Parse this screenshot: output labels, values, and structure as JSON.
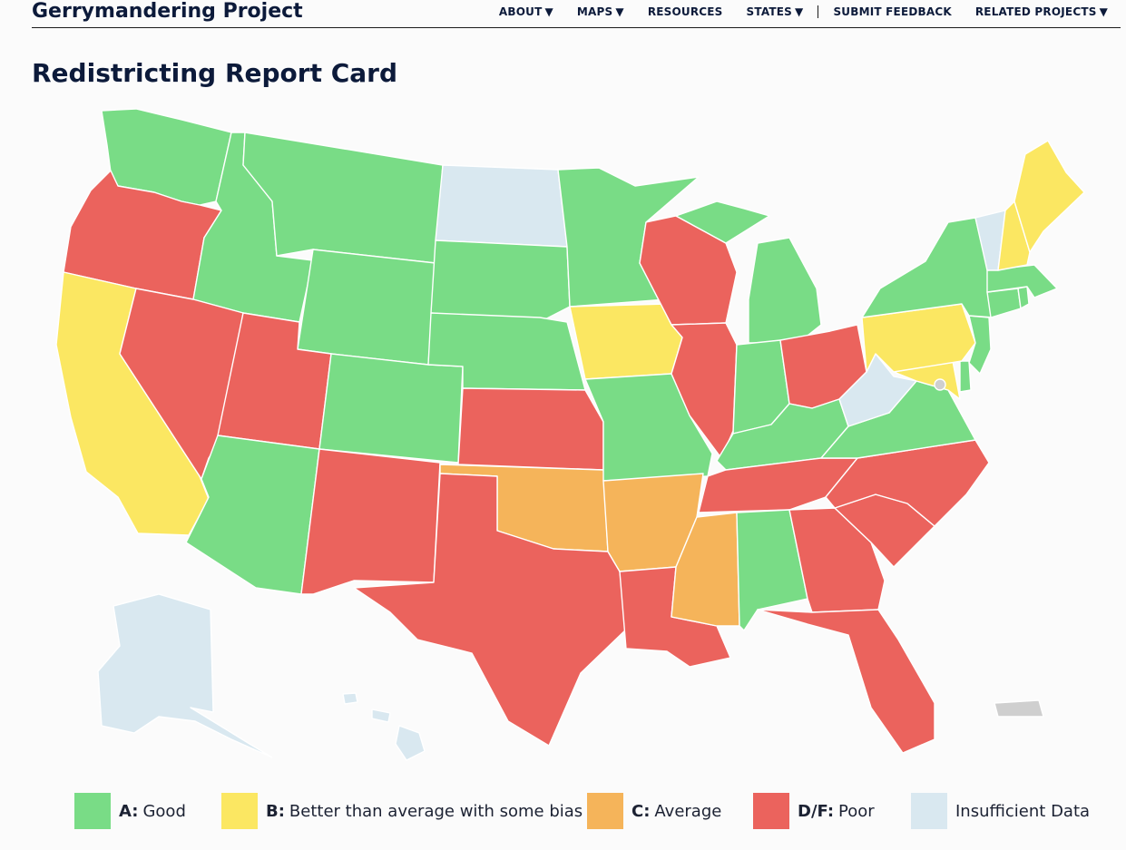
{
  "header": {
    "brand": "Gerrymandering Project",
    "nav": [
      {
        "label": "ABOUT",
        "dropdown": true
      },
      {
        "label": "MAPS",
        "dropdown": true
      },
      {
        "label": "RESOURCES",
        "dropdown": false
      },
      {
        "label": "STATES",
        "dropdown": true
      },
      {
        "label": "SUBMIT FEEDBACK",
        "dropdown": false
      },
      {
        "label": "RELATED PROJECTS",
        "dropdown": true
      }
    ],
    "caret": "▼"
  },
  "page": {
    "title": "Redistricting Report Card"
  },
  "colors": {
    "A": "#79dc86",
    "B": "#fbe762",
    "C": "#f5b45a",
    "DF": "#eb635d",
    "NA": "#d9e8f0",
    "territory": "#cfcfcf",
    "border": "#ffffff"
  },
  "legend": [
    {
      "grade": "A:",
      "text": "Good",
      "color_key": "A"
    },
    {
      "grade": "B:",
      "text": "Better than average with some bias",
      "color_key": "B"
    },
    {
      "grade": "C:",
      "text": "Average",
      "color_key": "C"
    },
    {
      "grade": "D/F:",
      "text": "Poor",
      "color_key": "DF"
    },
    {
      "grade": "",
      "text": "Insufficient Data",
      "color_key": "NA"
    }
  ],
  "grades": {
    "WA": "A",
    "OR": "DF",
    "CA": "B",
    "ID": "A",
    "NV": "DF",
    "MT": "A",
    "WY": "A",
    "UT": "DF",
    "AZ": "A",
    "CO": "A",
    "NM": "DF",
    "ND": "NA",
    "SD": "A",
    "NE": "A",
    "KS": "DF",
    "OK": "C",
    "TX": "DF",
    "MN": "A",
    "IA": "B",
    "MO": "A",
    "AR": "C",
    "LA": "DF",
    "WI": "DF",
    "IL": "DF",
    "MI": "A",
    "IN": "A",
    "OH": "DF",
    "KY": "A",
    "TN": "DF",
    "MS": "C",
    "AL": "A",
    "GA": "DF",
    "FL": "DF",
    "SC": "DF",
    "NC": "DF",
    "VA": "A",
    "WV": "NA",
    "MD": "B",
    "DE": "A",
    "PA": "B",
    "NJ": "A",
    "NY": "A",
    "CT": "A",
    "RI": "A",
    "MA": "A",
    "VT": "NA",
    "NH": "B",
    "ME": "B",
    "AK": "NA",
    "HI": "NA",
    "PR": "territory",
    "DC": "territory"
  }
}
